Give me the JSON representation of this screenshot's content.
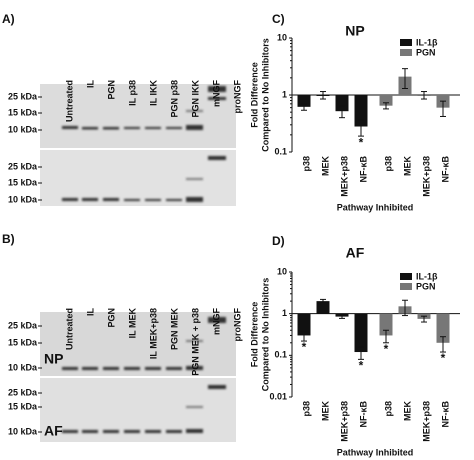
{
  "blots": [
    {
      "panel": "A)",
      "lanes": [
        "Untreated",
        "IL",
        "PGN",
        "IL p38",
        "IL IKK",
        "PGN p38",
        "PGN IKK",
        "mNGF",
        "proNGF"
      ],
      "markers": [
        [
          "25 kDa",
          "15 kDa",
          "10 kDa"
        ],
        [
          "25 kDa",
          "15 kDa",
          "10 kDa"
        ]
      ]
    },
    {
      "panel": "B)",
      "lanes": [
        "Untreated",
        "IL",
        "PGN",
        "IL MEK",
        "IL  MEK+p38",
        "PGN MEK",
        "PGN MEK + p38",
        "mNGF",
        "proNGF"
      ],
      "markers": [
        [
          "25 kDa",
          "15 kDa",
          "10 kDa"
        ],
        [
          "25 kDa",
          "15 kDa",
          "10 kDa"
        ]
      ],
      "blot_labels": [
        "NP",
        "AF"
      ]
    }
  ],
  "chart_data": [
    {
      "type": "bar",
      "panel": "C)",
      "title": "NP",
      "ylabel": [
        "Fold Difference",
        "Compared to No Inhibitors"
      ],
      "xlabel": "Pathway Inhibited",
      "log_y": true,
      "bar_origin": 1,
      "ylim": [
        0.1,
        10
      ],
      "yticks": [
        0.1,
        1,
        10
      ],
      "legend": "upper right",
      "categories": [
        "p38",
        "MEK",
        "MEK+p38",
        "NF-κB"
      ],
      "series": [
        {
          "name": "IL-1β",
          "color": "#111111",
          "values": [
            0.62,
            1.0,
            0.52,
            0.28
          ],
          "errors": [
            0.08,
            0.15,
            0.12,
            0.09
          ],
          "annotations": [
            {
              "index": 3,
              "text": "*"
            }
          ]
        },
        {
          "name": "PGN",
          "color": "#777777",
          "values": [
            0.65,
            2.1,
            1.0,
            0.6
          ],
          "errors": [
            0.08,
            0.8,
            0.15,
            0.18
          ]
        }
      ]
    },
    {
      "type": "bar",
      "panel": "D)",
      "title": "AF",
      "ylabel": [
        "Fold Difference",
        "Compared to No Inhibitors"
      ],
      "xlabel": "Pathway Inhibited",
      "log_y": true,
      "bar_origin": 1,
      "ylim": [
        0.01,
        10
      ],
      "yticks": [
        0.01,
        0.1,
        1,
        10
      ],
      "legend": "upper right",
      "categories": [
        "p38",
        "MEK",
        "MEK+p38",
        "NF-κB"
      ],
      "series": [
        {
          "name": "IL-1β",
          "color": "#111111",
          "values": [
            0.3,
            2.0,
            0.85,
            0.12
          ],
          "errors": [
            0.08,
            0.2,
            0.08,
            0.04
          ],
          "annotations": [
            {
              "index": 0,
              "text": "*"
            },
            {
              "index": 3,
              "text": "*"
            }
          ]
        },
        {
          "name": "PGN",
          "color": "#777777",
          "values": [
            0.3,
            1.5,
            0.75,
            0.2
          ],
          "errors": [
            0.1,
            0.6,
            0.12,
            0.08
          ],
          "annotations": [
            {
              "index": 0,
              "text": "*"
            },
            {
              "index": 3,
              "text": "*"
            }
          ]
        }
      ]
    }
  ]
}
